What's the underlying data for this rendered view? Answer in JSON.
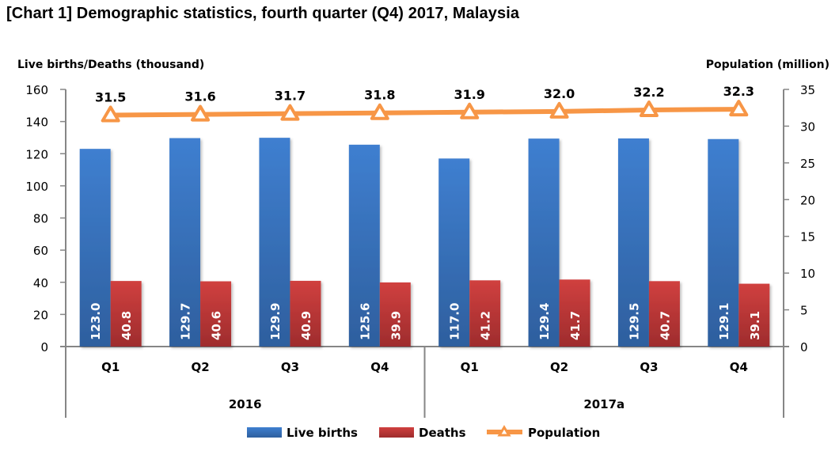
{
  "title": "[Chart 1] Demographic statistics, fourth quarter (Q4) 2017, Malaysia",
  "colors": {
    "live_births": "#3a72bf",
    "deaths": "#c0393b",
    "population": "#f79646",
    "axis": "#868686"
  },
  "chart_data": {
    "type": "bar",
    "title": "[Chart 1] Demographic statistics, fourth quarter (Q4) 2017, Malaysia",
    "ylabel": "Live births/Deaths (thousand)",
    "y2label": "Population (million)",
    "ylim": [
      0,
      160
    ],
    "yticks": [
      0,
      20,
      40,
      60,
      80,
      100,
      120,
      140,
      160
    ],
    "y2lim": [
      0,
      35
    ],
    "y2ticks": [
      0,
      5,
      10,
      15,
      20,
      25,
      30,
      35
    ],
    "grid": false,
    "legend_position": "bottom",
    "groups": [
      {
        "label": "2016",
        "categories": [
          "Q1",
          "Q2",
          "Q3",
          "Q4"
        ]
      },
      {
        "label": "2017a",
        "categories": [
          "Q1",
          "Q2",
          "Q3",
          "Q4"
        ]
      }
    ],
    "categories": [
      "Q1",
      "Q2",
      "Q3",
      "Q4",
      "Q1",
      "Q2",
      "Q3",
      "Q4"
    ],
    "series": [
      {
        "name": "Live births",
        "type": "bar",
        "axis": "left",
        "values": [
          123.0,
          129.7,
          129.9,
          125.6,
          117.0,
          129.4,
          129.5,
          129.1
        ],
        "labels": [
          "123.0",
          "129.7",
          "129.9",
          "125.6",
          "117.0",
          "129.4",
          "129.5",
          "129.1"
        ]
      },
      {
        "name": "Deaths",
        "type": "bar",
        "axis": "left",
        "values": [
          40.8,
          40.6,
          40.9,
          39.9,
          41.2,
          41.7,
          40.7,
          39.1
        ],
        "labels": [
          "40.8",
          "40.6",
          "40.9",
          "39.9",
          "41.2",
          "41.7",
          "40.7",
          "39.1"
        ]
      },
      {
        "name": "Population",
        "type": "line",
        "axis": "right",
        "marker": "triangle",
        "values": [
          31.5,
          31.6,
          31.7,
          31.8,
          31.9,
          32.0,
          32.2,
          32.3
        ],
        "labels": [
          "31.5",
          "31.6",
          "31.7",
          "31.8",
          "31.9",
          "32.0",
          "32.2",
          "32.3"
        ]
      }
    ]
  }
}
